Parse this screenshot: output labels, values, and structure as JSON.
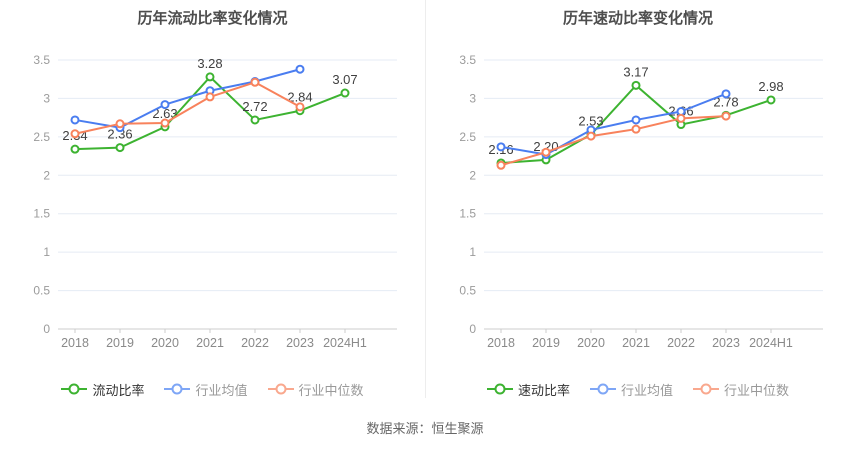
{
  "page": {
    "source_note": "数据来源：恒生聚源"
  },
  "chart_data": [
    {
      "type": "line",
      "title": "历年流动比率变化情况",
      "categories": [
        "2018",
        "2019",
        "2020",
        "2021",
        "2022",
        "2023",
        "2024H1"
      ],
      "ylim": [
        0,
        3.5
      ],
      "ytick_step": 0.5,
      "ytick_labels": [
        "0",
        "0.5",
        "1",
        "1.5",
        "2",
        "2.5",
        "3",
        "3.5"
      ],
      "grid": true,
      "legend_position": "bottom",
      "series": [
        {
          "name": "流动比率",
          "color": "#3db331",
          "legend_color": "#3db331",
          "primary": true,
          "values": [
            2.34,
            2.36,
            2.63,
            3.28,
            2.72,
            2.84,
            3.07
          ],
          "labels": [
            "2.34",
            "2.36",
            "2.63",
            "3.28",
            "2.72",
            "2.84",
            "3.07"
          ]
        },
        {
          "name": "行业均值",
          "color": "#4a7df0",
          "legend_color": "#7ea6f6",
          "primary": false,
          "values": [
            2.72,
            2.62,
            2.92,
            3.1,
            3.22,
            3.38
          ],
          "labels": []
        },
        {
          "name": "行业中位数",
          "color": "#f8825c",
          "legend_color": "#f9a88e",
          "primary": false,
          "values": [
            2.54,
            2.67,
            2.68,
            3.02,
            3.21,
            2.89
          ],
          "labels": []
        }
      ]
    },
    {
      "type": "line",
      "title": "历年速动比率变化情况",
      "categories": [
        "2018",
        "2019",
        "2020",
        "2021",
        "2022",
        "2023",
        "2024H1"
      ],
      "ylim": [
        0,
        3.5
      ],
      "ytick_step": 0.5,
      "ytick_labels": [
        "0",
        "0.5",
        "1",
        "1.5",
        "2",
        "2.5",
        "3",
        "3.5"
      ],
      "grid": true,
      "legend_position": "bottom",
      "series": [
        {
          "name": "速动比率",
          "color": "#3db331",
          "legend_color": "#3db331",
          "primary": true,
          "values": [
            2.16,
            2.2,
            2.53,
            3.17,
            2.66,
            2.78,
            2.98
          ],
          "labels": [
            "2.16",
            "2.20",
            "2.53",
            "3.17",
            "2.66",
            "2.78",
            "2.98"
          ]
        },
        {
          "name": "行业均值",
          "color": "#4a7df0",
          "legend_color": "#7ea6f6",
          "primary": false,
          "values": [
            2.37,
            2.27,
            2.59,
            2.72,
            2.83,
            3.06
          ],
          "labels": []
        },
        {
          "name": "行业中位数",
          "color": "#f8825c",
          "legend_color": "#f9a88e",
          "primary": false,
          "values": [
            2.13,
            2.3,
            2.51,
            2.6,
            2.74,
            2.77
          ],
          "labels": []
        }
      ]
    }
  ]
}
